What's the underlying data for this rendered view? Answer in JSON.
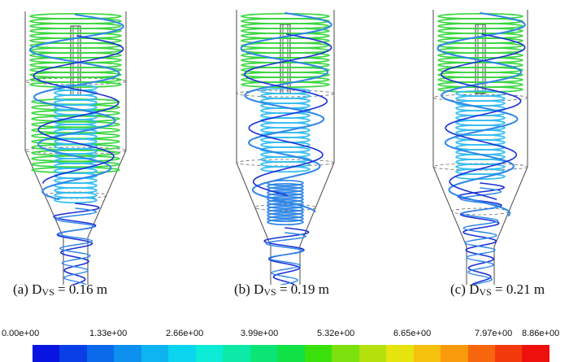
{
  "panels": [
    {
      "label": "(a)",
      "symbol": "D",
      "subscript": "VS",
      "value": "= 0.16 m"
    },
    {
      "label": "(b)",
      "symbol": "D",
      "subscript": "VS",
      "value": "= 0.19 m"
    },
    {
      "label": "(c)",
      "symbol": "D",
      "subscript": "VS",
      "value": "= 0.21 m"
    }
  ],
  "colorbar": {
    "tick_labels": [
      "0.00e+00",
      "1.33e+00",
      "2.66e+00",
      "3.99e+00",
      "5.32e+00",
      "6.65e+00",
      "7.97e+00",
      "8.86e+00"
    ],
    "min": 0.0,
    "max": 8.86,
    "colors": [
      "#0a14e0",
      "#0a3ee6",
      "#0a6ae9",
      "#0c8fee",
      "#0db4f1",
      "#0bd4ef",
      "#0bebd6",
      "#0ce9a6",
      "#0ce575",
      "#10e246",
      "#3ae10c",
      "#7ce00c",
      "#b4e10c",
      "#e6e40c",
      "#f6c10c",
      "#f79a0c",
      "#f7650c",
      "#f23a0c",
      "#ee100c"
    ]
  },
  "colors": {
    "outline": "#4a4a4a",
    "low": "#1b2fd6",
    "mid": "#2f86e8",
    "cyan": "#35bdf2",
    "green": "#39d63f"
  }
}
